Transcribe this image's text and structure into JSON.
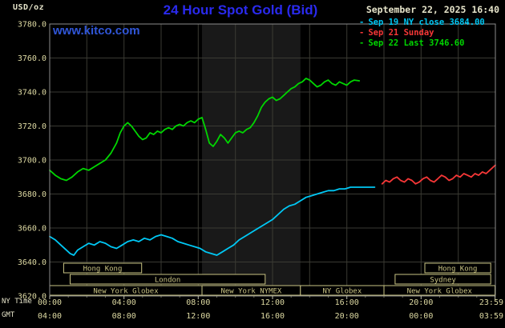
{
  "header": {
    "units_label": "USD/oz",
    "title": "24 Hour Spot Gold (Bid)",
    "datetime": "September 22, 2025 16:40",
    "watermark": "www.kitco.com"
  },
  "legend": [
    {
      "marker": "-",
      "label": "Sep 19 NY close 3684.00",
      "color": "#00c8f5"
    },
    {
      "marker": "-",
      "label": "Sep 21 Sunday",
      "color": "#f73737"
    },
    {
      "marker": "-",
      "label": "Sep 22 Last 3746.60",
      "color": "#00d600"
    }
  ],
  "footer": {
    "ny_time_label": "NY Time",
    "gmt_label": "GMT"
  },
  "colors": {
    "title": "#2a2aee",
    "watermark": "#3056d8",
    "date_text": "#e6e4ca",
    "axis_text": "#ddd9a2",
    "session": "#c9c383",
    "grid": "#3a3a33",
    "frame": "#8d8d8d",
    "band": "#191919",
    "tick": "#bbbbaa"
  },
  "chart_data": {
    "type": "line",
    "title": "24 Hour Spot Gold (Bid)",
    "ylabel": "USD/oz",
    "y_range": [
      3620,
      3780
    ],
    "y_tick_step": 20,
    "y_ticks": [
      "3780.0",
      "3760.0",
      "3740.0",
      "3720.0",
      "3700.0",
      "3680.0",
      "3660.0",
      "3640.0",
      "3620.0"
    ],
    "x_range_hours": [
      0,
      24
    ],
    "x_tick_hours": [
      0,
      4,
      8,
      12,
      16,
      20,
      23.983
    ],
    "x_ticks_ny": [
      "00:00",
      "04:00",
      "08:00",
      "12:00",
      "16:00",
      "20:00",
      "23:59"
    ],
    "x_ticks_gmt": [
      "04:00",
      "08:00",
      "12:00",
      "16:00",
      "20:00",
      "00:00",
      "03:59"
    ],
    "grid": true,
    "legend_position": "top-right",
    "nymex_session_band_hours": [
      8.2,
      13.5
    ],
    "series": [
      {
        "name": "Sep 19 NY close 3684.00",
        "color": "#00c8f5",
        "close_value": 3684.0,
        "points": [
          [
            0,
            3655
          ],
          [
            0.3,
            3653
          ],
          [
            0.6,
            3650
          ],
          [
            0.9,
            3647
          ],
          [
            1.1,
            3645
          ],
          [
            1.3,
            3644
          ],
          [
            1.5,
            3647
          ],
          [
            1.8,
            3649
          ],
          [
            2.1,
            3651
          ],
          [
            2.4,
            3650
          ],
          [
            2.7,
            3652
          ],
          [
            3,
            3651
          ],
          [
            3.3,
            3649
          ],
          [
            3.6,
            3648
          ],
          [
            3.9,
            3650
          ],
          [
            4.2,
            3652
          ],
          [
            4.5,
            3653
          ],
          [
            4.8,
            3652
          ],
          [
            5.1,
            3654
          ],
          [
            5.4,
            3653
          ],
          [
            5.7,
            3655
          ],
          [
            6,
            3656
          ],
          [
            6.3,
            3655
          ],
          [
            6.6,
            3654
          ],
          [
            6.9,
            3652
          ],
          [
            7.2,
            3651
          ],
          [
            7.5,
            3650
          ],
          [
            7.8,
            3649
          ],
          [
            8.1,
            3648
          ],
          [
            8.4,
            3646
          ],
          [
            8.7,
            3645
          ],
          [
            9,
            3644
          ],
          [
            9.3,
            3646
          ],
          [
            9.6,
            3648
          ],
          [
            9.9,
            3650
          ],
          [
            10.2,
            3653
          ],
          [
            10.5,
            3655
          ],
          [
            10.8,
            3657
          ],
          [
            11.1,
            3659
          ],
          [
            11.4,
            3661
          ],
          [
            11.7,
            3663
          ],
          [
            12,
            3665
          ],
          [
            12.3,
            3668
          ],
          [
            12.6,
            3671
          ],
          [
            12.9,
            3673
          ],
          [
            13.2,
            3674
          ],
          [
            13.5,
            3676
          ],
          [
            13.8,
            3678
          ],
          [
            14.1,
            3679
          ],
          [
            14.4,
            3680
          ],
          [
            14.7,
            3681
          ],
          [
            15,
            3682
          ],
          [
            15.3,
            3682
          ],
          [
            15.6,
            3683
          ],
          [
            15.9,
            3683
          ],
          [
            16.2,
            3684
          ],
          [
            16.6,
            3684
          ],
          [
            17,
            3684
          ],
          [
            17.5,
            3684
          ]
        ]
      },
      {
        "name": "Sep 21 Sunday",
        "color": "#f73737",
        "points": [
          [
            17.9,
            3686
          ],
          [
            18.1,
            3688
          ],
          [
            18.3,
            3687
          ],
          [
            18.5,
            3689
          ],
          [
            18.7,
            3690
          ],
          [
            18.9,
            3688
          ],
          [
            19.1,
            3687
          ],
          [
            19.3,
            3689
          ],
          [
            19.5,
            3688
          ],
          [
            19.7,
            3686
          ],
          [
            19.9,
            3687
          ],
          [
            20.1,
            3689
          ],
          [
            20.3,
            3690
          ],
          [
            20.5,
            3688
          ],
          [
            20.7,
            3687
          ],
          [
            20.9,
            3689
          ],
          [
            21.1,
            3691
          ],
          [
            21.3,
            3690
          ],
          [
            21.5,
            3688
          ],
          [
            21.7,
            3689
          ],
          [
            21.9,
            3691
          ],
          [
            22.1,
            3690
          ],
          [
            22.3,
            3692
          ],
          [
            22.5,
            3691
          ],
          [
            22.7,
            3690
          ],
          [
            22.9,
            3692
          ],
          [
            23.1,
            3691
          ],
          [
            23.3,
            3693
          ],
          [
            23.5,
            3692
          ],
          [
            23.7,
            3694
          ],
          [
            23.9,
            3696
          ],
          [
            24,
            3697
          ]
        ]
      },
      {
        "name": "Sep 22 Last 3746.60",
        "color": "#00d600",
        "last_value": 3746.6,
        "points": [
          [
            0,
            3694
          ],
          [
            0.3,
            3691
          ],
          [
            0.6,
            3689
          ],
          [
            0.9,
            3688
          ],
          [
            1.2,
            3690
          ],
          [
            1.5,
            3693
          ],
          [
            1.8,
            3695
          ],
          [
            2.1,
            3694
          ],
          [
            2.4,
            3696
          ],
          [
            2.7,
            3698
          ],
          [
            3,
            3700
          ],
          [
            3.3,
            3704
          ],
          [
            3.6,
            3710
          ],
          [
            3.8,
            3716
          ],
          [
            4,
            3720
          ],
          [
            4.2,
            3722
          ],
          [
            4.4,
            3720
          ],
          [
            4.6,
            3717
          ],
          [
            4.8,
            3714
          ],
          [
            5,
            3712
          ],
          [
            5.2,
            3713
          ],
          [
            5.4,
            3716
          ],
          [
            5.6,
            3715
          ],
          [
            5.8,
            3717
          ],
          [
            6,
            3716
          ],
          [
            6.2,
            3718
          ],
          [
            6.4,
            3719
          ],
          [
            6.6,
            3718
          ],
          [
            6.8,
            3720
          ],
          [
            7,
            3721
          ],
          [
            7.2,
            3720
          ],
          [
            7.4,
            3722
          ],
          [
            7.6,
            3723
          ],
          [
            7.8,
            3722
          ],
          [
            8,
            3724
          ],
          [
            8.2,
            3725
          ],
          [
            8.4,
            3718
          ],
          [
            8.6,
            3710
          ],
          [
            8.8,
            3708
          ],
          [
            9,
            3711
          ],
          [
            9.2,
            3715
          ],
          [
            9.4,
            3713
          ],
          [
            9.6,
            3710
          ],
          [
            9.8,
            3713
          ],
          [
            10,
            3716
          ],
          [
            10.2,
            3717
          ],
          [
            10.4,
            3716
          ],
          [
            10.6,
            3718
          ],
          [
            10.8,
            3719
          ],
          [
            11,
            3722
          ],
          [
            11.2,
            3726
          ],
          [
            11.4,
            3731
          ],
          [
            11.6,
            3734
          ],
          [
            11.8,
            3736
          ],
          [
            12,
            3737
          ],
          [
            12.2,
            3735
          ],
          [
            12.4,
            3736
          ],
          [
            12.6,
            3738
          ],
          [
            12.8,
            3740
          ],
          [
            13,
            3742
          ],
          [
            13.2,
            3743
          ],
          [
            13.4,
            3745
          ],
          [
            13.6,
            3746
          ],
          [
            13.8,
            3748
          ],
          [
            14,
            3747
          ],
          [
            14.2,
            3745
          ],
          [
            14.4,
            3743
          ],
          [
            14.6,
            3744
          ],
          [
            14.8,
            3746
          ],
          [
            15,
            3747
          ],
          [
            15.2,
            3745
          ],
          [
            15.4,
            3744
          ],
          [
            15.6,
            3746
          ],
          [
            15.8,
            3745
          ],
          [
            16,
            3744
          ],
          [
            16.2,
            3746
          ],
          [
            16.4,
            3747
          ],
          [
            16.67,
            3746.6
          ]
        ]
      }
    ],
    "market_sessions": [
      {
        "row": 0,
        "label": "Hong Kong",
        "start": 0.75,
        "end": 4.95
      },
      {
        "row": 0,
        "label": "Hong Kong",
        "start": 20.2,
        "end": 23.75
      },
      {
        "row": 1,
        "label": "London",
        "start": 1.1,
        "end": 11.6
      },
      {
        "row": 1,
        "label": "Sydney",
        "start": 18.6,
        "end": 23.75
      },
      {
        "row": 2,
        "label": "New York Globex",
        "start": 0,
        "end": 8.2
      },
      {
        "row": 2,
        "label": "New York NYMEX",
        "start": 8.2,
        "end": 13.5
      },
      {
        "row": 2,
        "label": "NY Globex",
        "start": 13.5,
        "end": 18
      },
      {
        "row": 2,
        "label": "New York Globex",
        "start": 18,
        "end": 23.98
      }
    ]
  }
}
